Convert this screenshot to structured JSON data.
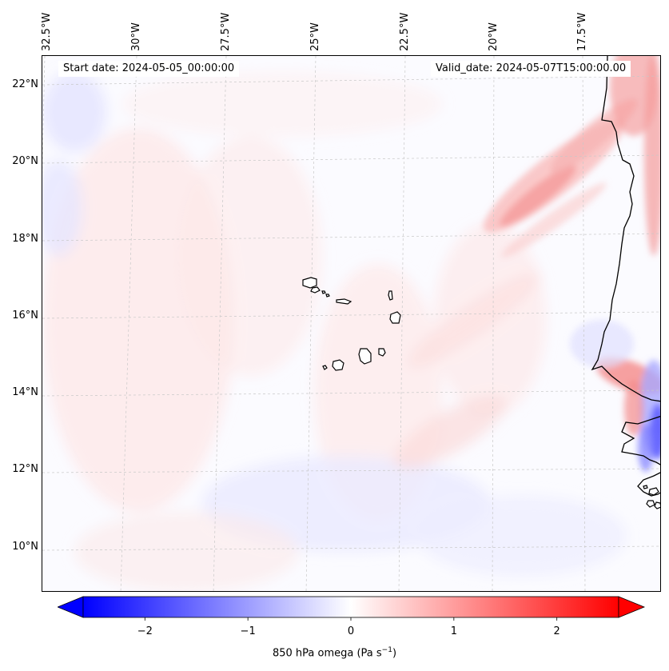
{
  "map": {
    "longitude_labels": [
      "32.5°W",
      "30°W",
      "27.5°W",
      "25°W",
      "22.5°W",
      "20°W",
      "17.5°W"
    ],
    "latitude_labels": [
      "22°N",
      "20°N",
      "18°N",
      "16°N",
      "14°N",
      "12°N",
      "10°N"
    ],
    "start_date_text": "Start date: 2024-05-05_00:00:00",
    "valid_date_text": "Valid_date: 2024-05-07T15:00:00.00",
    "colors": {
      "positive": "#ff0000",
      "negative": "#0000ff",
      "neutral": "#ffffff",
      "coastline": "#000000",
      "gridline": "#c8c8c8"
    }
  },
  "colorbar": {
    "min": -2.6,
    "max": 2.6,
    "ticks": [
      "−2",
      "−1",
      "0",
      "1",
      "2"
    ],
    "tick_values": [
      -2,
      -1,
      0,
      1,
      2
    ],
    "label": "850 hPa omega (Pa s",
    "label_exponent": "−1",
    "label_suffix": ")"
  }
}
